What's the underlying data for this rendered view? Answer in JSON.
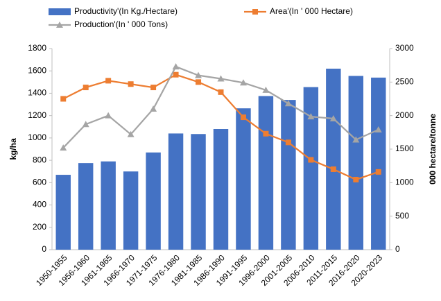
{
  "chart_data": {
    "type": "bar-line",
    "categories": [
      "1950-1955",
      "1956-1960",
      "1961-1965",
      "1966-1970",
      "1971-1975",
      "1976-1980",
      "1981-1985",
      "1986-1990",
      "1991-1995",
      "1996-2000",
      "2001-2005",
      "2006-2010",
      "2011-2015",
      "2016-2020",
      "2020-2023"
    ],
    "series": [
      {
        "name": "Productivity'(In Kg./Hectare)",
        "type": "bar",
        "color": "#4472c4",
        "values": [
          670,
          775,
          790,
          700,
          870,
          1040,
          1035,
          1080,
          1265,
          1375,
          1340,
          1455,
          1620,
          1555,
          1540
        ]
      },
      {
        "name": "Area'(In ' 000 Hectare)",
        "type": "line",
        "marker": "square",
        "axis": "y2",
        "color": "#ed7d31",
        "values": [
          2250,
          2420,
          2520,
          2470,
          2420,
          2610,
          2500,
          2350,
          1975,
          1730,
          1600,
          1340,
          1200,
          1045,
          1160
        ]
      },
      {
        "name": "Production'(In ' 000 Tons)",
        "type": "line",
        "marker": "triangle",
        "axis": "y2",
        "color": "#a5a5a5",
        "values": [
          1520,
          1870,
          2000,
          1720,
          2100,
          2730,
          2600,
          2550,
          2490,
          2380,
          2180,
          1985,
          1955,
          1640,
          1790
        ]
      }
    ],
    "ylabel": "kg/ha",
    "y2label": "000 hectare/tonne",
    "ylim": [
      0,
      1800
    ],
    "yticks": [
      0,
      200,
      400,
      600,
      800,
      1000,
      1200,
      1400,
      1600,
      1800
    ],
    "y2lim": [
      0,
      3000
    ],
    "y2ticks": [
      0,
      500,
      1000,
      1500,
      2000,
      2500,
      3000
    ],
    "grid": false
  }
}
